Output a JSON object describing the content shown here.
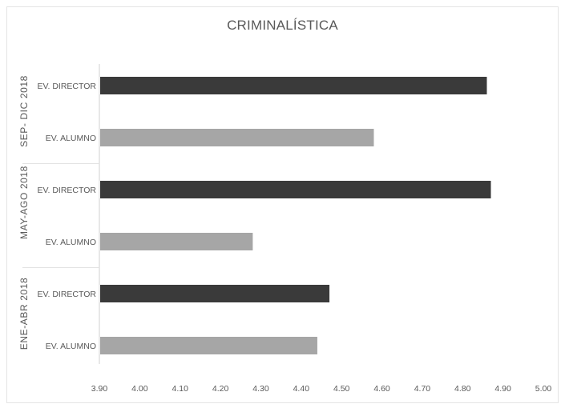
{
  "chart_data": {
    "type": "bar",
    "orientation": "horizontal",
    "title": "CRIMINALÍSTICA",
    "xlim": [
      3.9,
      5.0
    ],
    "x_ticks": [
      "3.90",
      "4.00",
      "4.10",
      "4.20",
      "4.30",
      "4.40",
      "4.50",
      "4.60",
      "4.70",
      "4.80",
      "4.90",
      "5.00"
    ],
    "grid": false,
    "groups": [
      {
        "name": "SEP- DIC 2018",
        "bars": [
          {
            "label": "EV. DIRECTOR",
            "value": 4.86,
            "color": "#3a3a3a"
          },
          {
            "label": "EV. ALUMNO",
            "value": 4.58,
            "color": "#a6a6a6"
          }
        ]
      },
      {
        "name": "MAY-AGO 2018",
        "bars": [
          {
            "label": "EV. DIRECTOR",
            "value": 4.87,
            "color": "#3a3a3a"
          },
          {
            "label": "EV. ALUMNO",
            "value": 4.28,
            "color": "#a6a6a6"
          }
        ]
      },
      {
        "name": "ENE-ABR 2018",
        "bars": [
          {
            "label": "EV. DIRECTOR",
            "value": 4.47,
            "color": "#3a3a3a"
          },
          {
            "label": "EV. ALUMNO",
            "value": 4.44,
            "color": "#a6a6a6"
          }
        ]
      }
    ]
  }
}
